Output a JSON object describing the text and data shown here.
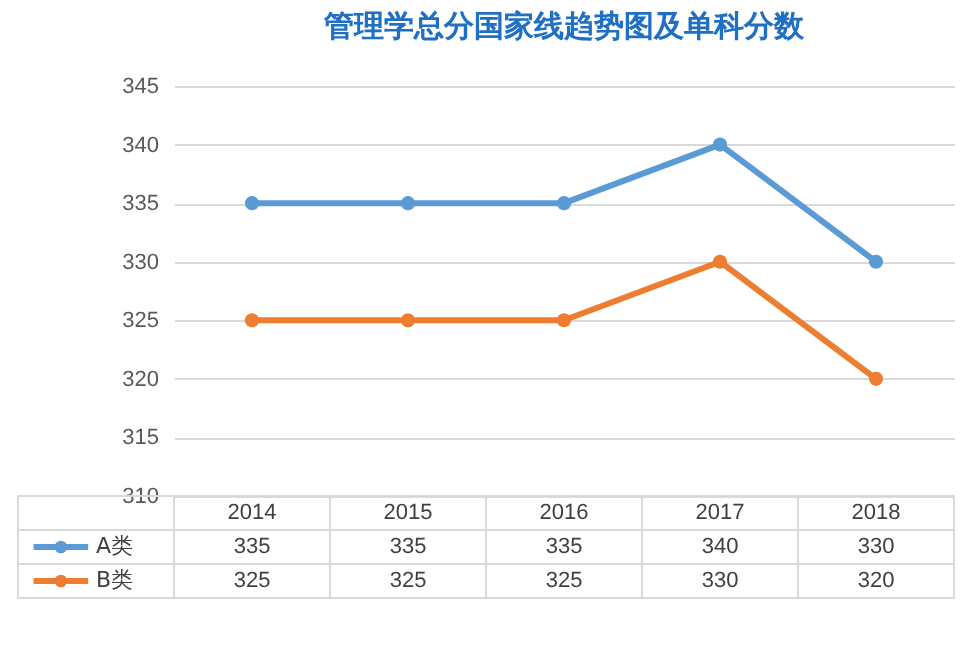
{
  "chart_data": {
    "type": "line",
    "title": "管理学总分国家线趋势图及单科分数",
    "categories": [
      "2014",
      "2015",
      "2016",
      "2017",
      "2018"
    ],
    "series": [
      {
        "name": "A类",
        "color": "#5b9bd5",
        "values": [
          335,
          335,
          335,
          340,
          330
        ]
      },
      {
        "name": "B类",
        "color": "#ed7d31",
        "values": [
          325,
          325,
          325,
          330,
          320
        ]
      }
    ],
    "ylim": [
      310,
      345
    ],
    "yticks": [
      310,
      315,
      320,
      325,
      330,
      335,
      340,
      345
    ],
    "grid": "y",
    "marker": "circle",
    "data_labels": true,
    "legend": "bottom left"
  }
}
